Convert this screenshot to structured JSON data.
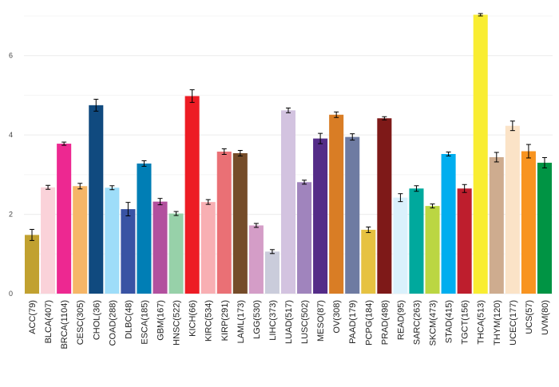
{
  "chart_data": {
    "type": "bar",
    "title": "",
    "xlabel": "",
    "ylabel": "",
    "ylim": [
      0,
      7.1
    ],
    "yticks": [
      0,
      2,
      4,
      6
    ],
    "grid": "horizontal",
    "error_bars": true,
    "categories": [
      "ACC(79)",
      "BLCA(407)",
      "BRCA(1104)",
      "CESC(305)",
      "CHOL(36)",
      "COAD(288)",
      "DLBC(48)",
      "ESCA(185)",
      "GBM(167)",
      "HNSC(522)",
      "KICH(66)",
      "KIRC(534)",
      "KIRP(291)",
      "LAML(173)",
      "LGG(530)",
      "LIHC(373)",
      "LUAD(517)",
      "LUSC(502)",
      "MESO(87)",
      "OV(308)",
      "PAAD(179)",
      "PCPG(184)",
      "PRAD(498)",
      "READ(95)",
      "SARC(263)",
      "SKCM(473)",
      "STAD(415)",
      "TGCT(156)",
      "THCA(513)",
      "THYM(120)",
      "UCEC(177)",
      "UCS(57)",
      "UVM(80)"
    ],
    "values": [
      1.48,
      2.68,
      3.78,
      2.71,
      4.75,
      2.67,
      2.13,
      3.28,
      2.32,
      2.02,
      4.98,
      2.31,
      3.58,
      3.54,
      1.72,
      1.06,
      4.62,
      2.81,
      3.91,
      4.51,
      3.95,
      1.61,
      4.42,
      2.42,
      2.65,
      2.21,
      3.52,
      2.65,
      7.03,
      3.44,
      4.23,
      3.59,
      3.3
    ],
    "errors": [
      0.14,
      0.05,
      0.04,
      0.07,
      0.15,
      0.05,
      0.17,
      0.07,
      0.08,
      0.05,
      0.16,
      0.06,
      0.07,
      0.07,
      0.05,
      0.05,
      0.06,
      0.05,
      0.13,
      0.07,
      0.08,
      0.07,
      0.04,
      0.1,
      0.07,
      0.05,
      0.05,
      0.1,
      0.03,
      0.12,
      0.12,
      0.17,
      0.13
    ],
    "colors": [
      "#C1A130",
      "#FAD2D9",
      "#ED2891",
      "#F6B667",
      "#104A7F",
      "#9EDDF9",
      "#3953A4",
      "#007EB5",
      "#B2509E",
      "#97D1A9",
      "#ED1C24",
      "#F8AFB3",
      "#EA7075",
      "#754C29",
      "#D49DC7",
      "#CACCDB",
      "#D3C3E0",
      "#A084BD",
      "#542C88",
      "#D97D25",
      "#6E7BA2",
      "#E6C241",
      "#7E1918",
      "#DAF1FC",
      "#00A99D",
      "#BBD642",
      "#00AEEF",
      "#BE1E2D",
      "#F9ED32",
      "#CEAC8F",
      "#FBE3C7",
      "#F89420",
      "#009444"
    ]
  }
}
